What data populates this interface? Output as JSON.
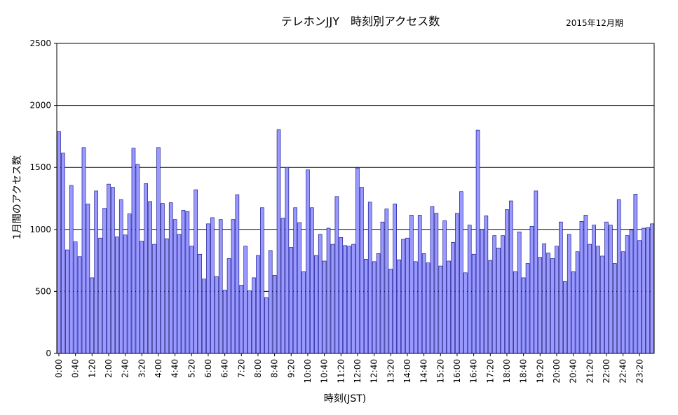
{
  "chart_data": {
    "type": "bar",
    "title": "テレホンJJY　時刻別アクセス数",
    "subtitle": "2015年12月期",
    "xlabel": "時刻(JST)",
    "ylabel": "1月間のアクセス数",
    "ylim": [
      0,
      2500
    ],
    "yticks": [
      0,
      500,
      1000,
      1500,
      2000,
      2500
    ],
    "grid": "horizontal",
    "bar_color": "#9999ff",
    "bar_edge_color": "#000080",
    "category_step_minutes": 10,
    "tick_label_every": 4,
    "categories": [
      "0:00",
      "0:10",
      "0:20",
      "0:30",
      "0:40",
      "0:50",
      "1:00",
      "1:10",
      "1:20",
      "1:30",
      "1:40",
      "1:50",
      "2:00",
      "2:10",
      "2:20",
      "2:30",
      "2:40",
      "2:50",
      "3:00",
      "3:10",
      "3:20",
      "3:30",
      "3:40",
      "3:50",
      "4:00",
      "4:10",
      "4:20",
      "4:30",
      "4:40",
      "4:50",
      "5:00",
      "5:10",
      "5:20",
      "5:30",
      "5:40",
      "5:50",
      "6:00",
      "6:10",
      "6:20",
      "6:30",
      "6:40",
      "6:50",
      "7:00",
      "7:10",
      "7:20",
      "7:30",
      "7:40",
      "7:50",
      "8:00",
      "8:10",
      "8:20",
      "8:30",
      "8:40",
      "8:50",
      "9:00",
      "9:10",
      "9:20",
      "9:30",
      "9:40",
      "9:50",
      "10:00",
      "10:10",
      "10:20",
      "10:30",
      "10:40",
      "10:50",
      "11:00",
      "11:10",
      "11:20",
      "11:30",
      "11:40",
      "11:50",
      "12:00",
      "12:10",
      "12:20",
      "12:30",
      "12:40",
      "12:50",
      "13:00",
      "13:10",
      "13:20",
      "13:30",
      "13:40",
      "13:50",
      "14:00",
      "14:10",
      "14:20",
      "14:30",
      "14:40",
      "14:50",
      "15:00",
      "15:10",
      "15:20",
      "15:30",
      "15:40",
      "15:50",
      "16:00",
      "16:10",
      "16:20",
      "16:30",
      "16:40",
      "16:50",
      "17:00",
      "17:10",
      "17:20",
      "17:30",
      "17:40",
      "17:50",
      "18:00",
      "18:10",
      "18:20",
      "18:30",
      "18:40",
      "18:50",
      "19:00",
      "19:10",
      "19:20",
      "19:30",
      "19:40",
      "19:50",
      "20:00",
      "20:10",
      "20:20",
      "20:30",
      "20:40",
      "20:50",
      "21:00",
      "21:10",
      "21:20",
      "21:30",
      "21:40",
      "21:50",
      "22:00",
      "22:10",
      "22:20",
      "22:30",
      "22:40",
      "22:50",
      "23:00",
      "23:10",
      "23:20",
      "23:30",
      "23:40",
      "23:50"
    ],
    "values": [
      1790,
      1615,
      835,
      1355,
      900,
      780,
      1660,
      1205,
      610,
      1310,
      930,
      1170,
      1365,
      1340,
      940,
      1240,
      955,
      1125,
      1655,
      1525,
      905,
      1370,
      1225,
      880,
      1660,
      1210,
      925,
      1215,
      1080,
      960,
      1155,
      1145,
      865,
      1320,
      800,
      600,
      1045,
      1095,
      620,
      1080,
      510,
      765,
      1080,
      1280,
      550,
      865,
      505,
      610,
      790,
      1175,
      450,
      830,
      630,
      1805,
      1090,
      1500,
      855,
      1175,
      1055,
      660,
      1480,
      1175,
      790,
      960,
      745,
      1010,
      880,
      1265,
      935,
      870,
      865,
      880,
      1495,
      1340,
      760,
      1220,
      740,
      805,
      1060,
      1165,
      680,
      1205,
      755,
      920,
      930,
      1115,
      740,
      1115,
      805,
      730,
      1185,
      1130,
      705,
      1070,
      745,
      895,
      1130,
      1305,
      650,
      1035,
      800,
      1800,
      1000,
      1110,
      750,
      950,
      850,
      950,
      1160,
      1230,
      660,
      980,
      610,
      725,
      1025,
      1310,
      775,
      885,
      810,
      765,
      865,
      1060,
      580,
      960,
      660,
      820,
      1065,
      1115,
      880,
      1035,
      865,
      785,
      1060,
      1035,
      725,
      1240,
      820,
      950,
      995,
      1285,
      910,
      1010,
      1015,
      1045
    ]
  }
}
